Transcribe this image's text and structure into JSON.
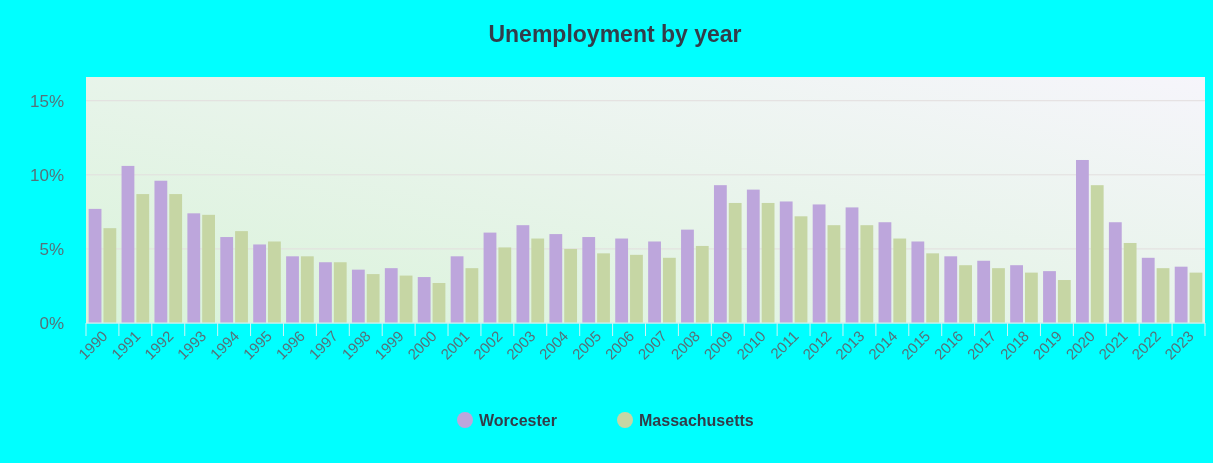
{
  "chart_data": {
    "type": "bar",
    "title": "Unemployment by year",
    "categories": [
      "1990",
      "1991",
      "1992",
      "1993",
      "1994",
      "1995",
      "1996",
      "1997",
      "1998",
      "1999",
      "2000",
      "2001",
      "2002",
      "2003",
      "2004",
      "2005",
      "2006",
      "2007",
      "2008",
      "2009",
      "2010",
      "2011",
      "2012",
      "2013",
      "2014",
      "2015",
      "2016",
      "2017",
      "2018",
      "2019",
      "2020",
      "2021",
      "2022",
      "2023"
    ],
    "series": [
      {
        "name": "Worcester",
        "color": "#bda6dc",
        "values": [
          7.7,
          10.6,
          9.6,
          7.4,
          5.8,
          5.3,
          4.5,
          4.1,
          3.6,
          3.7,
          3.1,
          4.5,
          6.1,
          6.6,
          6.0,
          5.8,
          5.7,
          5.5,
          6.3,
          9.3,
          9.0,
          8.2,
          8.0,
          7.8,
          6.8,
          5.5,
          4.5,
          4.2,
          3.9,
          3.5,
          11.0,
          6.8,
          4.4,
          3.8
        ]
      },
      {
        "name": "Massachusetts",
        "color": "#c6d6a4",
        "values": [
          6.4,
          8.7,
          8.7,
          7.3,
          6.2,
          5.5,
          4.5,
          4.1,
          3.3,
          3.2,
          2.7,
          3.7,
          5.1,
          5.7,
          5.0,
          4.7,
          4.6,
          4.4,
          5.2,
          8.1,
          8.1,
          7.2,
          6.6,
          6.6,
          5.7,
          4.7,
          3.9,
          3.7,
          3.4,
          2.9,
          9.3,
          5.4,
          3.7,
          3.4
        ]
      }
    ],
    "ylim": [
      0,
      16.6
    ],
    "yticks": [
      {
        "value": 0,
        "label": "0%"
      },
      {
        "value": 5,
        "label": "5%"
      },
      {
        "value": 10,
        "label": "10%"
      },
      {
        "value": 15,
        "label": "15%"
      }
    ],
    "grid": "y",
    "legend": "bottom"
  }
}
